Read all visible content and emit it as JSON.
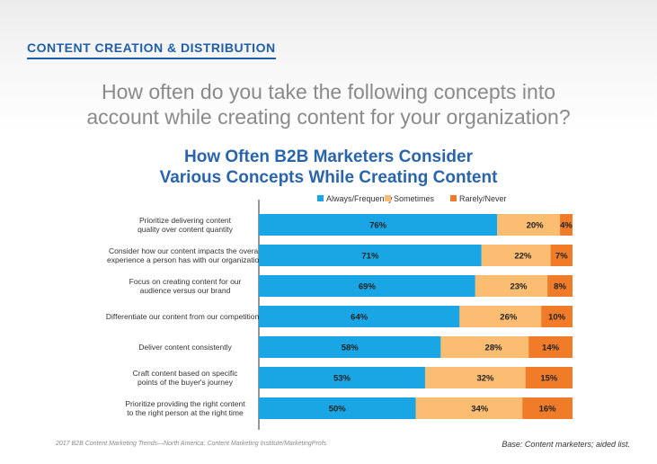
{
  "section_label": "CONTENT CREATION & DISTRIBUTION",
  "question_line1": "How often do you take the following concepts into",
  "question_line2": "account while creating content for your organization?",
  "footer_source": "2017 B2B Content Marketing Trends—North America: Content Marketing Institute/MarketingProfs",
  "footer_base": "Base: Content marketers; aided list.",
  "chart_data": {
    "type": "bar",
    "stacked": true,
    "orientation": "horizontal",
    "title": "How Often B2B Marketers Consider Various Concepts While Creating Content",
    "title_lines": [
      "How Often B2B Marketers Consider",
      "Various Concepts While Creating Content"
    ],
    "legend_position": "top",
    "xlim": [
      0,
      100
    ],
    "categories": [
      [
        "Prioritize delivering content",
        "quality over content quantity"
      ],
      [
        "Consider how our content impacts the overall",
        "experience a person has with our organization"
      ],
      [
        "Focus on creating content for our",
        "audience versus our brand"
      ],
      [
        "Differentiate our content from our competition's"
      ],
      [
        "Deliver content consistently"
      ],
      [
        "Craft content based on specific",
        "points of the buyer's journey"
      ],
      [
        "Prioritize providing the right content",
        "to the right person at the right time"
      ]
    ],
    "series": [
      {
        "name": "Always/Frequently",
        "color": "#1aa6e4",
        "values": [
          76,
          71,
          69,
          64,
          58,
          53,
          50
        ],
        "labels": [
          "76%",
          "71%",
          "69%",
          "64%",
          "58%",
          "53%",
          "50%"
        ]
      },
      {
        "name": "Sometimes",
        "color": "#fbbd72",
        "values": [
          20,
          22,
          23,
          26,
          28,
          32,
          34
        ],
        "labels": [
          "20%",
          "22%",
          "23%",
          "26%",
          "28%",
          "32%",
          "34%"
        ]
      },
      {
        "name": "Rarely/Never",
        "color": "#f07c2a",
        "values": [
          4,
          7,
          8,
          10,
          14,
          15,
          16
        ],
        "labels": [
          "4%",
          "7%",
          "8%",
          "10%",
          "14%",
          "15%",
          "16%"
        ]
      }
    ]
  }
}
